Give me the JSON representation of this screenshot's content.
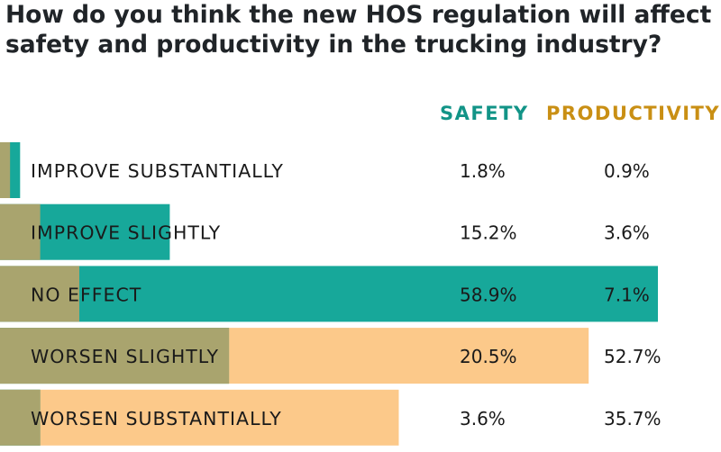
{
  "chart_data": {
    "type": "bar",
    "title": "How do you think the new HOS regulation will affect safety and productivity in the trucking industry?",
    "categories": [
      "IMPROVE SUBSTANTIALLY",
      "IMPROVE SLIGHTLY",
      "NO EFFECT",
      "WORSEN SLIGHTLY",
      "WORSEN SUBSTANTIALLY"
    ],
    "series": [
      {
        "name": "SAFETY",
        "values": [
          1.8,
          15.2,
          58.9,
          20.5,
          3.6
        ],
        "labels": [
          "1.8%",
          "15.2%",
          "58.9%",
          "20.5%",
          "3.6%"
        ]
      },
      {
        "name": "PRODUCTIVITY",
        "values": [
          0.9,
          3.6,
          7.1,
          52.7,
          35.7
        ],
        "labels": [
          "0.9%",
          "3.6%",
          "7.1%",
          "52.7%",
          "35.7%"
        ]
      }
    ],
    "xlim": [
      0,
      60
    ],
    "grid": false,
    "legend": "top-right",
    "colors": {
      "safety": "#17a89a",
      "productivity": "#fcc98a",
      "overlap": "#a9a46e",
      "safety_text": "#129487",
      "productivity_text": "#c98f14"
    }
  }
}
